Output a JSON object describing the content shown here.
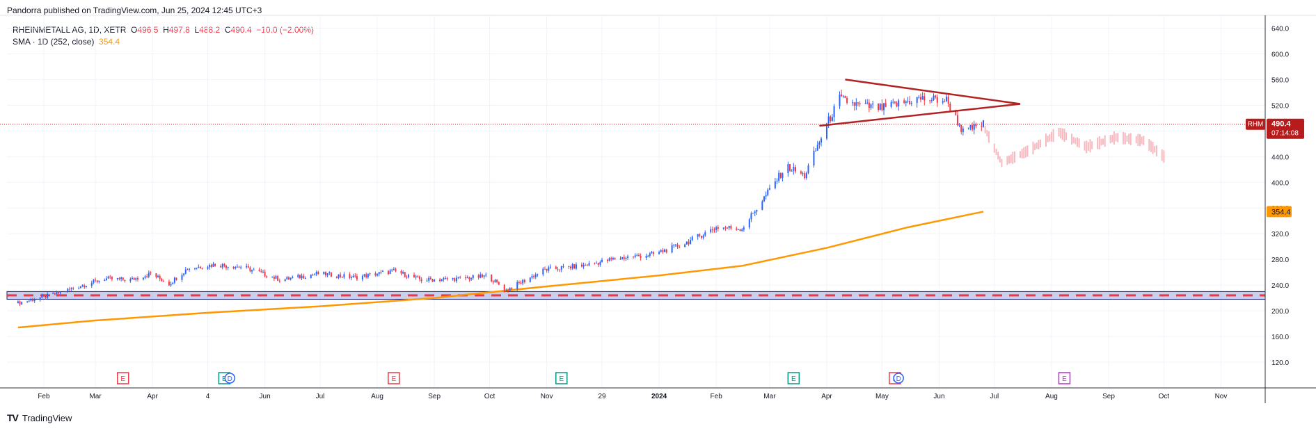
{
  "header": {
    "published_text": "Pandorra published on TradingView.com, Jun 25, 2024 12:45 UTC+3"
  },
  "legend": {
    "symbol": "RHEINMETALL AG, 1D, XETR",
    "o_label": "O",
    "o_value": "496.5",
    "h_label": "H",
    "h_value": "497.8",
    "l_label": "L",
    "l_value": "488.2",
    "c_label": "C",
    "c_value": "490.4",
    "change": "−10.0 (−2.00%)",
    "sma_label": "SMA · 1D (252, close)",
    "sma_value": "354.4"
  },
  "price_badge": {
    "ticker": "RHM",
    "price": "490.4",
    "countdown": "07:14:08"
  },
  "sma_badge": "354.4",
  "footer": {
    "logo_text": "TradingView"
  },
  "colors": {
    "up": "#2962ff",
    "down": "#f23645",
    "sma": "#ff9800",
    "triangle": "#b22222",
    "support_band": "#9fa8da",
    "support_dash": "#f23645",
    "projection": "#f7b9bf",
    "badge": "#b71c1c"
  },
  "chart_data": {
    "type": "candlestick",
    "title": "RHEINMETALL AG, 1D, XETR",
    "ylim": [
      80,
      660
    ],
    "y_ticks": [
      "120.0",
      "160.0",
      "200.0",
      "240.0",
      "280.0",
      "320.0",
      "360.0",
      "400.0",
      "440.0",
      "480.0",
      "520.0",
      "560.0",
      "600.0",
      "640.0"
    ],
    "x_ticks": [
      "Feb",
      "Mar",
      "Apr",
      "4",
      "Jun",
      "Jul",
      "Aug",
      "Sep",
      "Oct",
      "Nov",
      "29",
      "2024",
      "Feb",
      "Mar",
      "Apr",
      "May",
      "Jun",
      "Jul",
      "Aug",
      "Sep",
      "Oct",
      "Nov"
    ],
    "price_path": [
      {
        "x": "Jan 18, 2023",
        "y": 212
      },
      {
        "x": "Feb 6, 2023",
        "y": 225
      },
      {
        "x": "Feb 20, 2023",
        "y": 238
      },
      {
        "x": "Mar 6, 2023",
        "y": 250
      },
      {
        "x": "Mar 20, 2023",
        "y": 248
      },
      {
        "x": "Mar 31, 2023",
        "y": 258
      },
      {
        "x": "Apr 10, 2023",
        "y": 242
      },
      {
        "x": "Apr 20, 2023",
        "y": 266
      },
      {
        "x": "May 5, 2023",
        "y": 272
      },
      {
        "x": "May 20, 2023",
        "y": 268
      },
      {
        "x": "Jun 10, 2023",
        "y": 248
      },
      {
        "x": "Jun 30, 2023",
        "y": 258
      },
      {
        "x": "Jul 20, 2023",
        "y": 252
      },
      {
        "x": "Aug 10, 2023",
        "y": 262
      },
      {
        "x": "Aug 25, 2023",
        "y": 248
      },
      {
        "x": "Sep 15, 2023",
        "y": 250
      },
      {
        "x": "Sep 30, 2023",
        "y": 254
      },
      {
        "x": "Oct 10, 2023",
        "y": 232
      },
      {
        "x": "Oct 31, 2023",
        "y": 264
      },
      {
        "x": "Nov 20, 2023",
        "y": 270
      },
      {
        "x": "Dec 10, 2023",
        "y": 282
      },
      {
        "x": "Dec 29, 2023",
        "y": 288
      },
      {
        "x": "Jan 15, 2024",
        "y": 305
      },
      {
        "x": "Feb 1, 2024",
        "y": 330
      },
      {
        "x": "Feb 15, 2024",
        "y": 328
      },
      {
        "x": "Feb 28, 2024",
        "y": 380
      },
      {
        "x": "Mar 10, 2024",
        "y": 425
      },
      {
        "x": "Mar 20, 2024",
        "y": 410
      },
      {
        "x": "Apr 1, 2024",
        "y": 490
      },
      {
        "x": "Apr 8, 2024",
        "y": 530
      },
      {
        "x": "Apr 18, 2024",
        "y": 520
      },
      {
        "x": "May 1, 2024",
        "y": 515
      },
      {
        "x": "May 20, 2024",
        "y": 530
      },
      {
        "x": "Jun 5, 2024",
        "y": 528
      },
      {
        "x": "Jun 14, 2024",
        "y": 478
      },
      {
        "x": "Jun 25, 2024",
        "y": 490.4
      }
    ],
    "projection_path": [
      {
        "x": "Jun 25, 2024",
        "y": 488
      },
      {
        "x": "Jul 5, 2024",
        "y": 430
      },
      {
        "x": "Jul 20, 2024",
        "y": 450
      },
      {
        "x": "Aug 5, 2024",
        "y": 478
      },
      {
        "x": "Aug 20, 2024",
        "y": 455
      },
      {
        "x": "Sep 5, 2024",
        "y": 470
      },
      {
        "x": "Sep 20, 2024",
        "y": 465
      },
      {
        "x": "Oct 1, 2024",
        "y": 440
      }
    ],
    "sma_path": [
      {
        "x": "Jan 18, 2023",
        "y": 174
      },
      {
        "x": "Mar 1, 2023",
        "y": 185
      },
      {
        "x": "May 1, 2023",
        "y": 197
      },
      {
        "x": "Jul 1, 2023",
        "y": 207
      },
      {
        "x": "Sep 1, 2023",
        "y": 220
      },
      {
        "x": "Nov 1, 2023",
        "y": 238
      },
      {
        "x": "Jan 1, 2024",
        "y": 255
      },
      {
        "x": "Feb 15, 2024",
        "y": 270
      },
      {
        "x": "Apr 1, 2024",
        "y": 298
      },
      {
        "x": "May 15, 2024",
        "y": 330
      },
      {
        "x": "Jun 25, 2024",
        "y": 354.4
      }
    ],
    "support_band": [
      218,
      230
    ],
    "triangle": {
      "upper": [
        {
          "x": "Apr 11, 2024",
          "y": 560
        },
        {
          "x": "Jul 15, 2024",
          "y": 522
        }
      ],
      "lower": [
        {
          "x": "Mar 28, 2024",
          "y": 488
        },
        {
          "x": "Jul 15, 2024",
          "y": 522
        }
      ]
    },
    "earnings_markers": [
      {
        "x": "Mar 16, 2023",
        "label": "E",
        "kind": "red"
      },
      {
        "x": "May 10, 2023",
        "label": "E",
        "kind": "green"
      },
      {
        "x": "May 13, 2023",
        "label": "D",
        "kind": "blue"
      },
      {
        "x": "Aug 10, 2023",
        "label": "E",
        "kind": "red"
      },
      {
        "x": "Nov 9, 2023",
        "label": "E",
        "kind": "green"
      },
      {
        "x": "Mar 14, 2024",
        "label": "E",
        "kind": "green"
      },
      {
        "x": "May 8, 2024",
        "label": "E",
        "kind": "red"
      },
      {
        "x": "May 10, 2024",
        "label": "D",
        "kind": "blue"
      },
      {
        "x": "Aug 8, 2024",
        "label": "E",
        "kind": "purple"
      }
    ]
  }
}
